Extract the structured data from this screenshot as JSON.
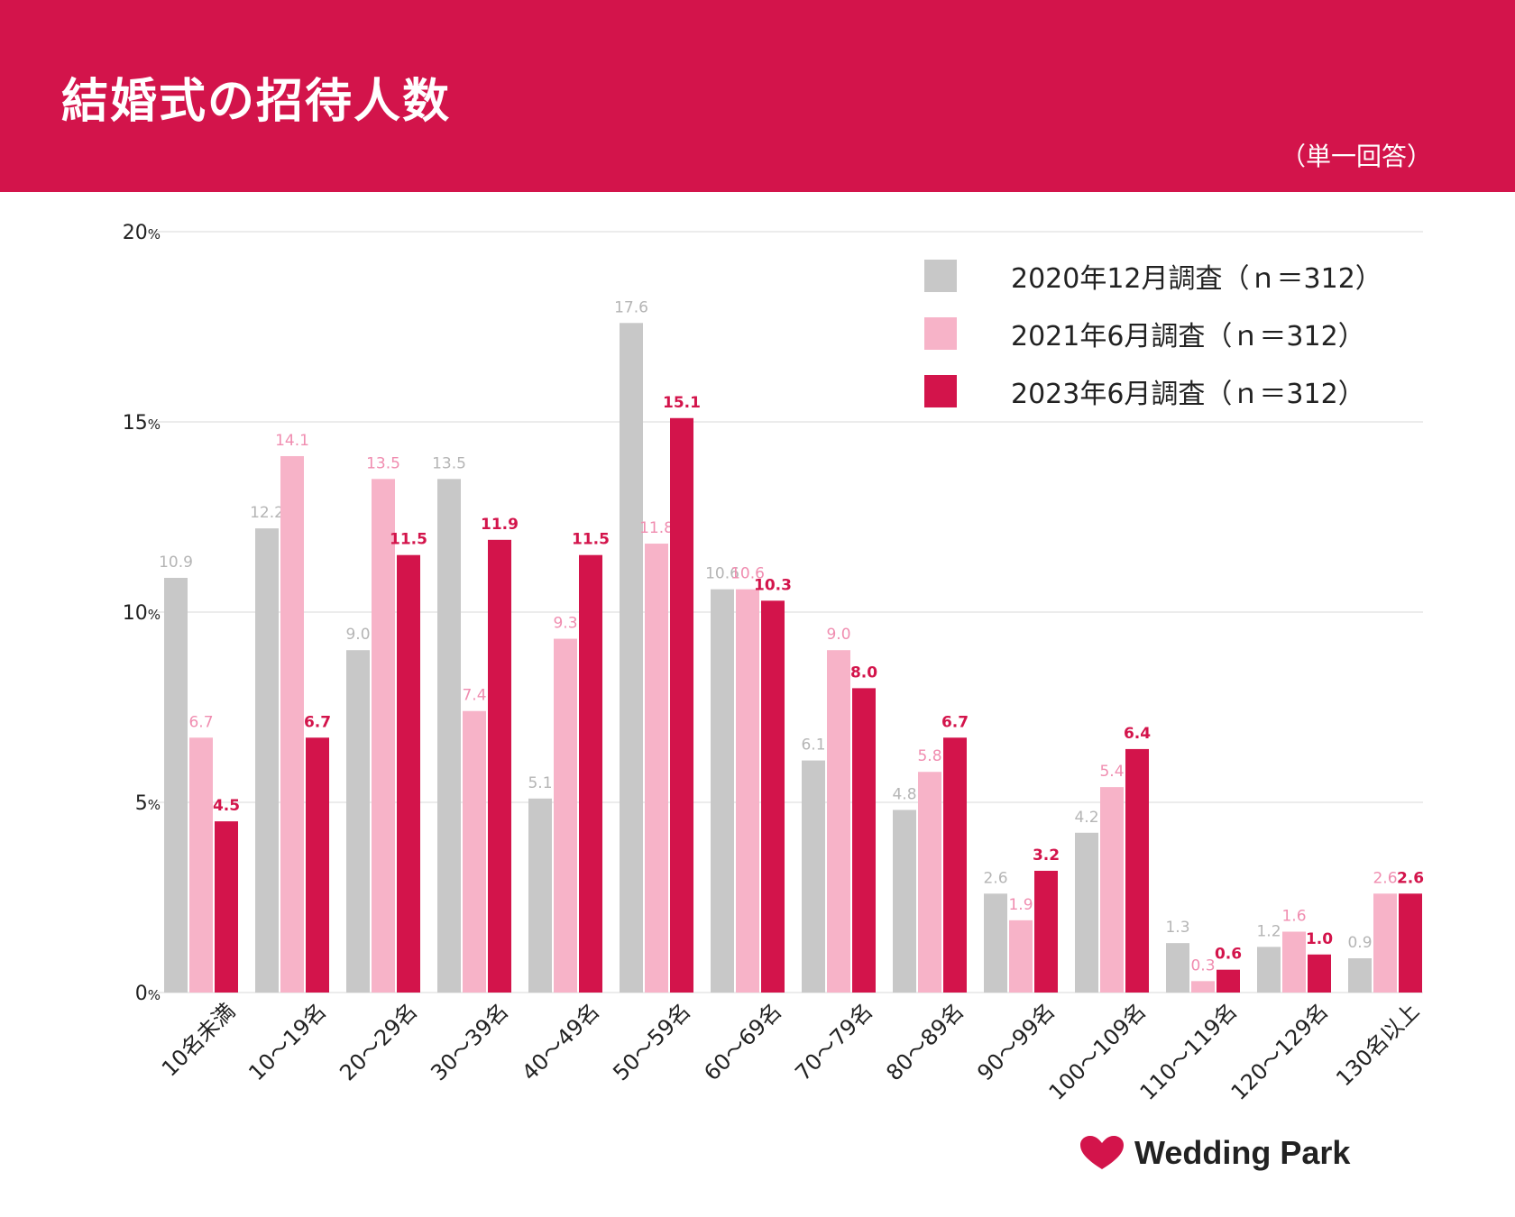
{
  "title": "結婚式の招待人数",
  "note": "（単一回答）",
  "brand": {
    "name": "Wedding Park",
    "icon": "heart-icon",
    "color": "#d3144b"
  },
  "chart_data": {
    "type": "bar",
    "title": "結婚式の招待人数",
    "ylim": [
      0,
      20
    ],
    "yticks": [
      0,
      5,
      10,
      15,
      20
    ],
    "ytick_unit": "%",
    "grid": true,
    "legend_position": "top-right",
    "categories": [
      "10名未満",
      "10〜19名",
      "20〜29名",
      "30〜39名",
      "40〜49名",
      "50〜59名",
      "60〜69名",
      "70〜79名",
      "80〜89名",
      "90〜99名",
      "100〜109名",
      "110〜119名",
      "120〜129名",
      "130名以上"
    ],
    "series": [
      {
        "name": "2020年12月調査（ｎ＝312）",
        "color": "#c8c8c8",
        "label_color": "#b5b5b5",
        "values": [
          10.9,
          12.2,
          9.0,
          13.5,
          5.1,
          17.6,
          10.6,
          6.1,
          4.8,
          2.6,
          4.2,
          1.3,
          1.2,
          0.9
        ]
      },
      {
        "name": "2021年6月調査（ｎ＝312）",
        "color": "#f7b3c8",
        "label_color": "#f08db0",
        "values": [
          6.7,
          14.1,
          13.5,
          7.4,
          9.3,
          11.8,
          10.6,
          9.0,
          5.8,
          1.9,
          5.4,
          0.3,
          1.6,
          2.6
        ]
      },
      {
        "name": "2023年6月調査（ｎ＝312）",
        "color": "#d3144b",
        "label_color": "#d3144b",
        "values": [
          4.5,
          6.7,
          11.5,
          11.9,
          11.5,
          15.1,
          10.3,
          8.0,
          6.7,
          3.2,
          6.4,
          0.6,
          1.0,
          2.6
        ]
      }
    ]
  }
}
